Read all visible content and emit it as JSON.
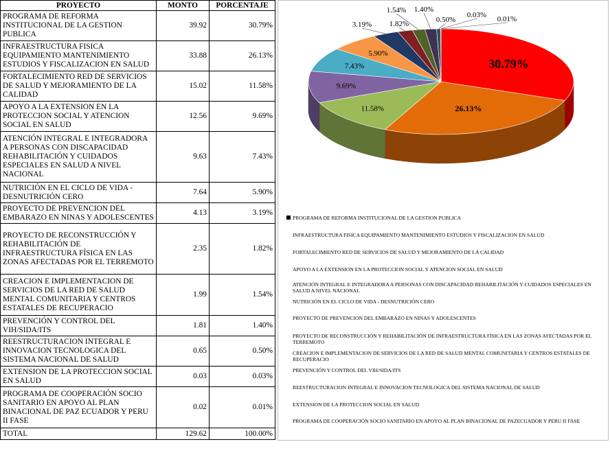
{
  "table": {
    "headers": {
      "project": "PROYECTO",
      "amount": "MONTO",
      "percent": "PORCENTAJE"
    },
    "rows": [
      {
        "project": "PROGRAMA DE REFORMA INSTITUCIONAL DE LA GESTION PUBLICA",
        "amount": "39.92",
        "percent": "30.79%"
      },
      {
        "project": "INFRAESTRUCTURA FISICA EQUIPAMIENTO MANTENIMIENTO ESTUDIOS Y FISCALIZACION EN SALUD",
        "amount": "33.88",
        "percent": "26.13%"
      },
      {
        "project": "FORTALECIMIENTO RED DE SERVICIOS DE SALUD Y MEJORAMIENTO DE LA CALIDAD",
        "amount": "15.02",
        "percent": "11.58%"
      },
      {
        "project": "APOYO A LA EXTENSION EN LA PROTECCION SOCIAL Y ATENCION SOCIAL EN SALUD",
        "amount": "12.56",
        "percent": "9.69%"
      },
      {
        "project": "ATENCIÓN INTEGRAL E INTEGRADORA A PERSONAS CON DISCAPACIDAD REHABILITACIÓN Y CUIDADOS ESPECIALES EN SALUD A NIVEL NACIONAL",
        "amount": "9.63",
        "percent": "7.43%"
      },
      {
        "project": "NUTRICIÓN EN EL CICLO DE VIDA - DESNUTRICIÓN CERO",
        "amount": "7.64",
        "percent": "5.90%"
      },
      {
        "project": "PROYECTO DE PREVENCION DEL EMBARAZO EN NINAS Y ADOLESCENTES",
        "amount": "4.13",
        "percent": "3.19%"
      },
      {
        "project": "PROYECTO DE RECONSTRUCCIÓN Y REHABILITACIÓN DE INFRAESTRUCTURA FÍSICA EN LAS ZONAS AFECTADAS POR EL TERREMOTO",
        "amount": "2.35",
        "percent": "1.82%"
      },
      {
        "project": "CREACION E IMPLEMENTACION DE SERVICIOS DE LA RED DE SALUD MENTAL COMUNITARIA Y CENTROS ESTATALES DE RECUPERACIO",
        "amount": "1.99",
        "percent": "1.54%"
      },
      {
        "project": "PREVENCIÓN Y CONTROL DEL VIH/SIDA/ITS",
        "amount": "1.81",
        "percent": "1.40%"
      },
      {
        "project": "REESTRUCTURACION INTEGRAL E INNOVACION TECNOLOGICA DEL SISTEMA NACIONAL DE SALUD",
        "amount": "0.65",
        "percent": "0.50%"
      },
      {
        "project": "EXTENSION DE LA PROTECCION SOCIAL EN SALUD",
        "amount": "0.03",
        "percent": "0.03%"
      },
      {
        "project": "PROGRAMA DE COOPERACIÓN SOCIO SANITARIO EN APOYO AL PLAN BINACIONAL DE PAZ ECUADOR Y PERU II FASE",
        "amount": "0.02",
        "percent": "0.01%"
      }
    ],
    "total": {
      "label": "TOTAL",
      "amount": "129.62",
      "percent": "100.00%"
    }
  },
  "chart_data": {
    "type": "pie",
    "title": "",
    "categories": [
      "PROGRAMA DE REFORMA INSTITUCIONAL DE LA GESTION PUBLICA",
      "INFRAESTRUCTURA FISICA EQUIPAMIENTO MANTENIMIENTO ESTUDIOS Y FISCALIZACION EN SALUD",
      "FORTALECIMIENTO RED DE SERVICIOS DE SALUD Y MEJORAMIENTO DE LA CALIDAD",
      "APOYO A LA EXTENSION EN LA PROTECCION SOCIAL Y ATENCION SOCIAL EN SALUD",
      "ATENCIÓN INTEGRAL E INTEGRADORA A PERSONAS CON DISCAPACIDAD REHABILITACIÓN Y CUIDADOS ESPECIALES EN SALUD A NIVEL NACIONAL",
      "NUTRICIÓN EN EL CICLO DE VIDA - DESNUTRICIÓN CERO",
      "PROYECTO DE PREVENCION DEL EMBARAZO EN NINAS Y ADOLESCENTES",
      "PROYECTO DE RECONSTRUCCIÓN Y REHABILITACIÓN DE INFRAESTRUCTURA FÍSICA EN LAS ZONAS AFECTADAS POR EL TERREMOTO",
      "CREACION E IMPLEMENTACION DE SERVICIOS DE LA RED DE SALUD MENTAL COMUNITARIA Y CENTROS ESTATALES DE RECUPERACIO",
      "PREVENCIÓN Y CONTROL DEL VIH/SIDA/ITS",
      "REESTRUCTURACION INTEGRAL E INNOVACION TECNOLOGICA DEL SISTEMA NACIONAL DE SALUD",
      "EXTENSION DE LA PROTECCION SOCIAL EN SALUD",
      "PROGRAMA DE COOPERACIÓN SOCIO SANITARIO EN APOYO AL PLAN BINACIONAL DE PAZECUADOR Y PERU II FASE"
    ],
    "values": [
      39.92,
      33.88,
      15.02,
      12.56,
      9.63,
      7.64,
      4.13,
      2.35,
      1.99,
      1.81,
      0.65,
      0.03,
      0.02
    ],
    "labels": [
      "30.79%",
      "26.13%",
      "11.58%",
      "9.69%",
      "7.43%",
      "5.90%",
      "3.19%",
      "1.82%",
      "1.54%",
      "1.40%",
      "0.50%",
      "0.03%",
      "0.01%"
    ],
    "colors": [
      "#ff0000",
      "#e36c09",
      "#9bbb59",
      "#8064a2",
      "#4bacc6",
      "#f79646",
      "#1f3864",
      "#7f1f1f",
      "#4f6228",
      "#403151",
      "#215868",
      "#7f7f7f",
      "#b9cde5"
    ],
    "legend_position": "bottom",
    "style": "3d"
  }
}
